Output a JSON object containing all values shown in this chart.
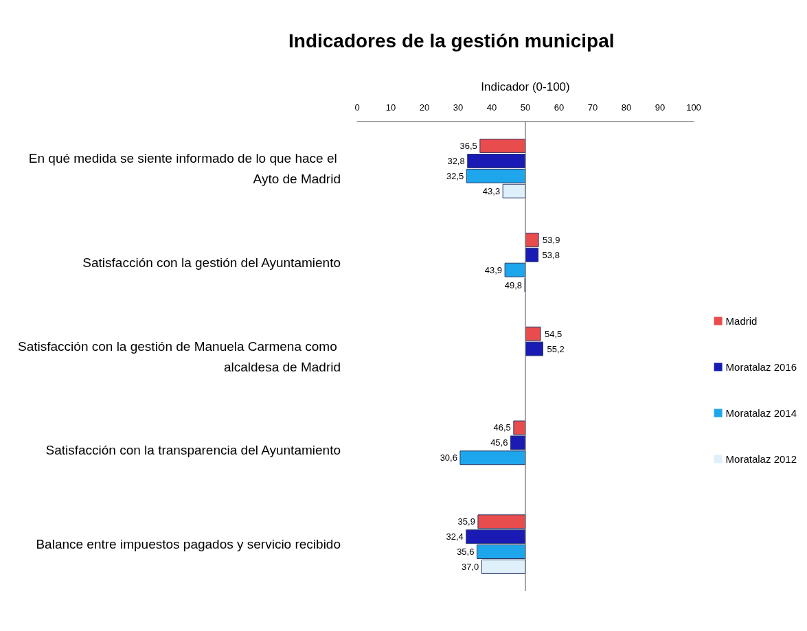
{
  "chart_data": {
    "type": "bar",
    "orientation": "horizontal",
    "title": "Indicadores de la gestión municipal",
    "xlabel": "Indicador (0-100)",
    "categories": [
      "En qué medida se siente informado de lo que hace el Ayto de Madrid",
      "Satisfacción con la gestión del Ayuntamiento",
      "Satisfacción con la gestión de Manuela Carmena como alcaldesa de Madrid",
      "Satisfacción con la transparencia del Ayuntamiento",
      "Balance entre impuestos pagados y servicio recibido"
    ],
    "series": [
      {
        "name": "Madrid",
        "color": "#e84c4c",
        "base": [
          50,
          50,
          50,
          50,
          50
        ],
        "values": [
          -13.5,
          3.9,
          4.5,
          -3.5,
          -14.1
        ],
        "value_labels": [
          "36,5",
          "53,9",
          "54,5",
          "46,5",
          "35,9"
        ]
      },
      {
        "name": "Moratalaz 2016",
        "color": "#1a1ab4",
        "base": [
          50,
          50,
          50,
          50,
          50
        ],
        "values": [
          -17.2,
          3.8,
          5.2,
          -4.4,
          -17.6
        ],
        "value_labels": [
          "32,8",
          "53,8",
          "55,2",
          "45,6",
          "32,4"
        ]
      },
      {
        "name": "Moratalaz 2014",
        "color": "#1ea6ec",
        "base": [
          50,
          50,
          null,
          50,
          50
        ],
        "values": [
          -17.5,
          -6.1,
          null,
          -19.4,
          -14.4
        ],
        "value_labels": [
          "32,5",
          "43,9",
          null,
          "30,6",
          "35,6"
        ]
      },
      {
        "name": "Moratalaz 2012",
        "color": "#dff0fa",
        "base": [
          50,
          50,
          null,
          null,
          50
        ],
        "values": [
          -6.7,
          -0.2,
          null,
          null,
          -13.0
        ],
        "value_labels": [
          "43,3",
          "49,8",
          null,
          null,
          "37,0"
        ]
      }
    ],
    "xlim": [
      0,
      100
    ],
    "xticks": [
      0,
      10,
      20,
      30,
      40,
      50,
      60,
      70,
      80,
      90,
      100
    ],
    "ref_lines": [
      {
        "axis": "x",
        "value": 50
      }
    ],
    "grid": false,
    "legend": "right"
  }
}
